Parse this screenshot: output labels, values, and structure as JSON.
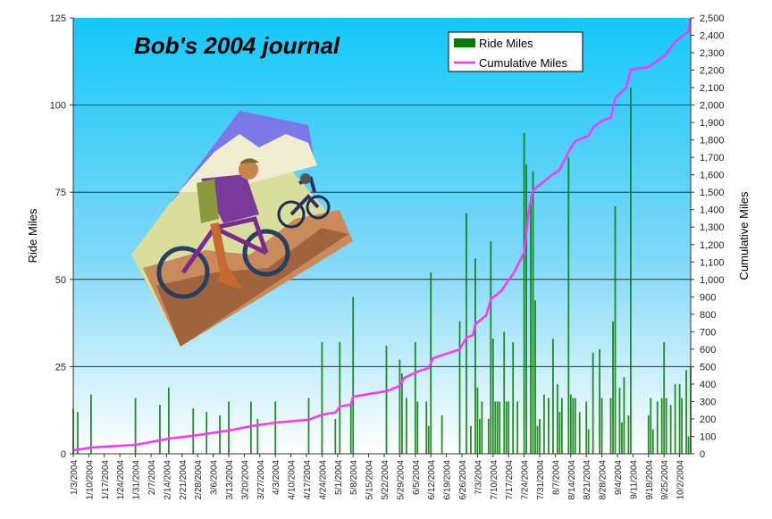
{
  "chart_data": {
    "type": "bar+line",
    "title": "Bob's 2004 journal",
    "ylabel": "Ride Miles",
    "y2label": "Cumulative Miles",
    "ylim": [
      0,
      125
    ],
    "y2lim": [
      0,
      2500
    ],
    "yticks": [
      "0",
      "25",
      "50",
      "75",
      "100",
      "125"
    ],
    "y2ticks": [
      "0",
      "100",
      "200",
      "300",
      "400",
      "500",
      "600",
      "700",
      "800",
      "900",
      "1,000",
      "1,100",
      "1,200",
      "1,300",
      "1,400",
      "1,500",
      "1,600",
      "1,700",
      "1,800",
      "1,900",
      "2,000",
      "2,100",
      "2,200",
      "2,300",
      "2,400",
      "2,500"
    ],
    "xticks": [
      "1/3/2004",
      "1/10/2004",
      "1/17/2004",
      "1/24/2004",
      "1/31/2004",
      "2/7/2004",
      "2/14/2004",
      "2/21/2004",
      "2/28/2004",
      "3/6/2004",
      "3/13/2004",
      "3/20/2004",
      "3/27/2004",
      "4/3/2004",
      "4/10/2004",
      "4/17/2004",
      "4/24/2004",
      "5/1/2004",
      "5/8/2004",
      "5/15/2004",
      "5/22/2004",
      "5/29/2004",
      "6/5/2004",
      "6/12/2004",
      "6/19/2004",
      "6/26/2004",
      "7/3/2004",
      "7/10/2004",
      "7/17/2004",
      "7/24/2004",
      "7/31/2004",
      "8/7/2004",
      "8/14/2004",
      "8/21/2004",
      "8/28/2004",
      "9/4/2004",
      "9/11/2004",
      "9/18/2004",
      "9/25/2004",
      "10/2/2004"
    ],
    "grid": true,
    "legend_position": "top-right",
    "colors": {
      "bars": "#007a00",
      "line": "#ff33ff",
      "sky_top": "#14c8f8",
      "sky_bottom": "#ffffff"
    },
    "series": [
      {
        "name": "Ride Miles",
        "type": "bar",
        "points": [
          [
            "1/3/2004",
            13
          ],
          [
            "1/5/2004",
            12
          ],
          [
            "1/11/2004",
            17
          ],
          [
            "1/31/2004",
            16
          ],
          [
            "2/11/2004",
            14
          ],
          [
            "2/15/2004",
            19
          ],
          [
            "2/26/2004",
            13
          ],
          [
            "3/3/2004",
            12
          ],
          [
            "3/9/2004",
            11
          ],
          [
            "3/13/2004",
            15
          ],
          [
            "3/23/2004",
            15
          ],
          [
            "3/26/2004",
            10
          ],
          [
            "4/3/2004",
            15
          ],
          [
            "4/18/2004",
            16
          ],
          [
            "4/24/2004",
            32
          ],
          [
            "4/30/2004",
            10
          ],
          [
            "5/2/2004",
            32
          ],
          [
            "5/7/2004",
            14
          ],
          [
            "5/8/2004",
            45
          ],
          [
            "5/23/2004",
            31
          ],
          [
            "5/29/2004",
            27
          ],
          [
            "5/30/2004",
            23
          ],
          [
            "6/1/2004",
            16
          ],
          [
            "6/5/2004",
            32
          ],
          [
            "6/6/2004",
            15
          ],
          [
            "6/10/2004",
            15
          ],
          [
            "6/11/2004",
            8
          ],
          [
            "6/12/2004",
            52
          ],
          [
            "6/17/2004",
            11
          ],
          [
            "6/25/2004",
            38
          ],
          [
            "6/28/2004",
            69
          ],
          [
            "6/30/2004",
            8
          ],
          [
            "7/2/2004",
            56
          ],
          [
            "7/3/2004",
            19
          ],
          [
            "7/4/2004",
            10
          ],
          [
            "7/5/2004",
            15
          ],
          [
            "7/8/2004",
            10
          ],
          [
            "7/9/2004",
            61
          ],
          [
            "7/10/2004",
            33
          ],
          [
            "7/11/2004",
            15
          ],
          [
            "7/12/2004",
            15
          ],
          [
            "7/13/2004",
            15
          ],
          [
            "7/15/2004",
            35
          ],
          [
            "7/16/2004",
            15
          ],
          [
            "7/17/2004",
            15
          ],
          [
            "7/19/2004",
            32
          ],
          [
            "7/21/2004",
            15
          ],
          [
            "7/24/2004",
            92
          ],
          [
            "7/25/2004",
            83
          ],
          [
            "7/27/2004",
            74
          ],
          [
            "7/28/2004",
            81
          ],
          [
            "7/29/2004",
            44
          ],
          [
            "7/30/2004",
            8
          ],
          [
            "7/31/2004",
            10
          ],
          [
            "8/2/2004",
            17
          ],
          [
            "8/4/2004",
            16
          ],
          [
            "8/6/2004",
            33
          ],
          [
            "8/8/2004",
            20
          ],
          [
            "8/9/2004",
            12
          ],
          [
            "8/10/2004",
            16
          ],
          [
            "8/13/2004",
            85
          ],
          [
            "8/14/2004",
            17
          ],
          [
            "8/15/2004",
            16
          ],
          [
            "8/16/2004",
            16
          ],
          [
            "8/18/2004",
            12
          ],
          [
            "8/21/2004",
            15
          ],
          [
            "8/22/2004",
            7
          ],
          [
            "8/24/2004",
            29
          ],
          [
            "8/27/2004",
            30
          ],
          [
            "8/28/2004",
            16
          ],
          [
            "9/1/2004",
            16
          ],
          [
            "9/2/2004",
            38
          ],
          [
            "9/3/2004",
            71
          ],
          [
            "9/5/2004",
            19
          ],
          [
            "9/6/2004",
            9
          ],
          [
            "9/7/2004",
            22
          ],
          [
            "9/9/2004",
            11
          ],
          [
            "9/10/2004",
            105
          ],
          [
            "9/18/2004",
            11
          ],
          [
            "9/19/2004",
            16
          ],
          [
            "9/20/2004",
            7
          ],
          [
            "9/22/2004",
            15
          ],
          [
            "9/24/2004",
            16
          ],
          [
            "9/25/2004",
            32
          ],
          [
            "9/26/2004",
            16
          ],
          [
            "9/28/2004",
            14
          ],
          [
            "9/30/2004",
            20
          ],
          [
            "10/2/2004",
            20
          ],
          [
            "10/3/2004",
            16
          ],
          [
            "10/5/2004",
            24
          ],
          [
            "10/6/2004",
            5
          ],
          [
            "10/7/2004",
            25
          ]
        ]
      },
      {
        "name": "Cumulative Miles",
        "type": "line",
        "axis": "right",
        "points": [
          [
            "1/3/2004",
            20
          ],
          [
            "1/11/2004",
            36
          ],
          [
            "1/31/2004",
            51
          ],
          [
            "2/11/2004",
            77
          ],
          [
            "2/15/2004",
            87
          ],
          [
            "2/25/2004",
            102
          ],
          [
            "3/13/2004",
            133
          ],
          [
            "3/23/2004",
            159
          ],
          [
            "4/3/2004",
            179
          ],
          [
            "4/18/2004",
            195
          ],
          [
            "4/24/2004",
            225
          ],
          [
            "4/30/2004",
            236
          ],
          [
            "5/2/2004",
            271
          ],
          [
            "5/7/2004",
            282
          ],
          [
            "5/8/2004",
            328
          ],
          [
            "5/23/2004",
            359
          ],
          [
            "5/29/2004",
            389
          ],
          [
            "5/31/2004",
            435
          ],
          [
            "6/6/2004",
            471
          ],
          [
            "6/11/2004",
            492
          ],
          [
            "6/13/2004",
            548
          ],
          [
            "6/25/2004",
            599
          ],
          [
            "6/28/2004",
            666
          ],
          [
            "7/1/2004",
            681
          ],
          [
            "7/2/2004",
            743
          ],
          [
            "7/7/2004",
            794
          ],
          [
            "7/9/2004",
            886
          ],
          [
            "7/14/2004",
            937
          ],
          [
            "7/16/2004",
            978
          ],
          [
            "7/19/2004",
            1030
          ],
          [
            "7/24/2004",
            1153
          ],
          [
            "7/26/2004",
            1388
          ],
          [
            "7/28/2004",
            1511
          ],
          [
            "8/5/2004",
            1593
          ],
          [
            "8/9/2004",
            1629
          ],
          [
            "8/13/2004",
            1731
          ],
          [
            "8/16/2004",
            1793
          ],
          [
            "8/22/2004",
            1824
          ],
          [
            "8/24/2004",
            1870
          ],
          [
            "8/28/2004",
            1911
          ],
          [
            "9/1/2004",
            1926
          ],
          [
            "9/3/2004",
            2039
          ],
          [
            "9/8/2004",
            2100
          ],
          [
            "9/10/2004",
            2203
          ],
          [
            "9/18/2004",
            2218
          ],
          [
            "9/25/2004",
            2280
          ],
          [
            "9/30/2004",
            2362
          ],
          [
            "10/6/2004",
            2423
          ],
          [
            "10/7/2004",
            2500
          ]
        ]
      }
    ]
  }
}
